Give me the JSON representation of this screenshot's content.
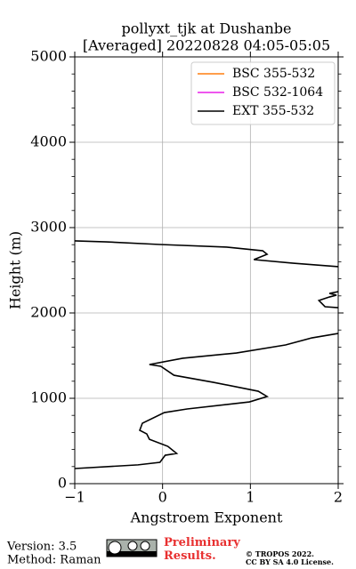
{
  "chart_data": {
    "type": "line",
    "title": "pollyxt_tjk at Dushanbe",
    "subtitle": "[Averaged] 20220828 04:05-05:05",
    "x_label": "Angstroem Exponent",
    "y_label": "Height (m)",
    "xlim": [
      -1,
      2
    ],
    "xticks": [
      {
        "value": -1,
        "label": "−1"
      },
      0,
      1,
      2
    ],
    "ylim": [
      0,
      5000
    ],
    "yticks": [
      0,
      1000,
      2000,
      3000,
      4000,
      5000
    ],
    "grid": true,
    "legend": "upper right",
    "series": [
      {
        "name": "BSC 355-532",
        "color": "#ff7f0e",
        "x": [],
        "y": []
      },
      {
        "name": "BSC 532-1064",
        "color": "#e81ee8",
        "x": [],
        "y": []
      },
      {
        "name": "EXT 355-532",
        "color": "#000000",
        "x": [
          -1,
          -0.28,
          -0.03,
          0.03,
          0.16,
          0.06,
          -0.15,
          -0.18,
          -0.26,
          -0.23,
          0.02,
          0.28,
          0.99,
          1.19,
          1.09,
          0.58,
          0.13,
          -0.02,
          -0.15,
          0.23,
          0.84,
          1.4,
          1.7,
          2.0,
          null,
          2.0,
          1.85,
          1.78,
          1.9,
          1.98,
          1.9,
          2.0,
          null,
          2.0,
          1.49,
          1.04,
          1.19,
          1.14,
          0.73,
          -0.03,
          -0.64,
          -1
        ],
        "y": [
          177,
          220,
          250,
          333,
          354,
          437,
          520,
          583,
          625,
          708,
          833,
          875,
          958,
          1021,
          1083,
          1187,
          1270,
          1375,
          1396,
          1469,
          1531,
          1625,
          1708,
          1760,
          null,
          2062,
          2073,
          2146,
          2187,
          2208,
          2229,
          2250,
          null,
          2542,
          2583,
          2625,
          2687,
          2729,
          2771,
          2802,
          2833,
          2844
        ]
      }
    ]
  },
  "footer": {
    "version": "Version: 3.5",
    "method": "Method: Raman",
    "status": "Preliminary Results.",
    "copyright": "© TROPOS 2022.",
    "license": "CC BY SA 4.0 License."
  }
}
